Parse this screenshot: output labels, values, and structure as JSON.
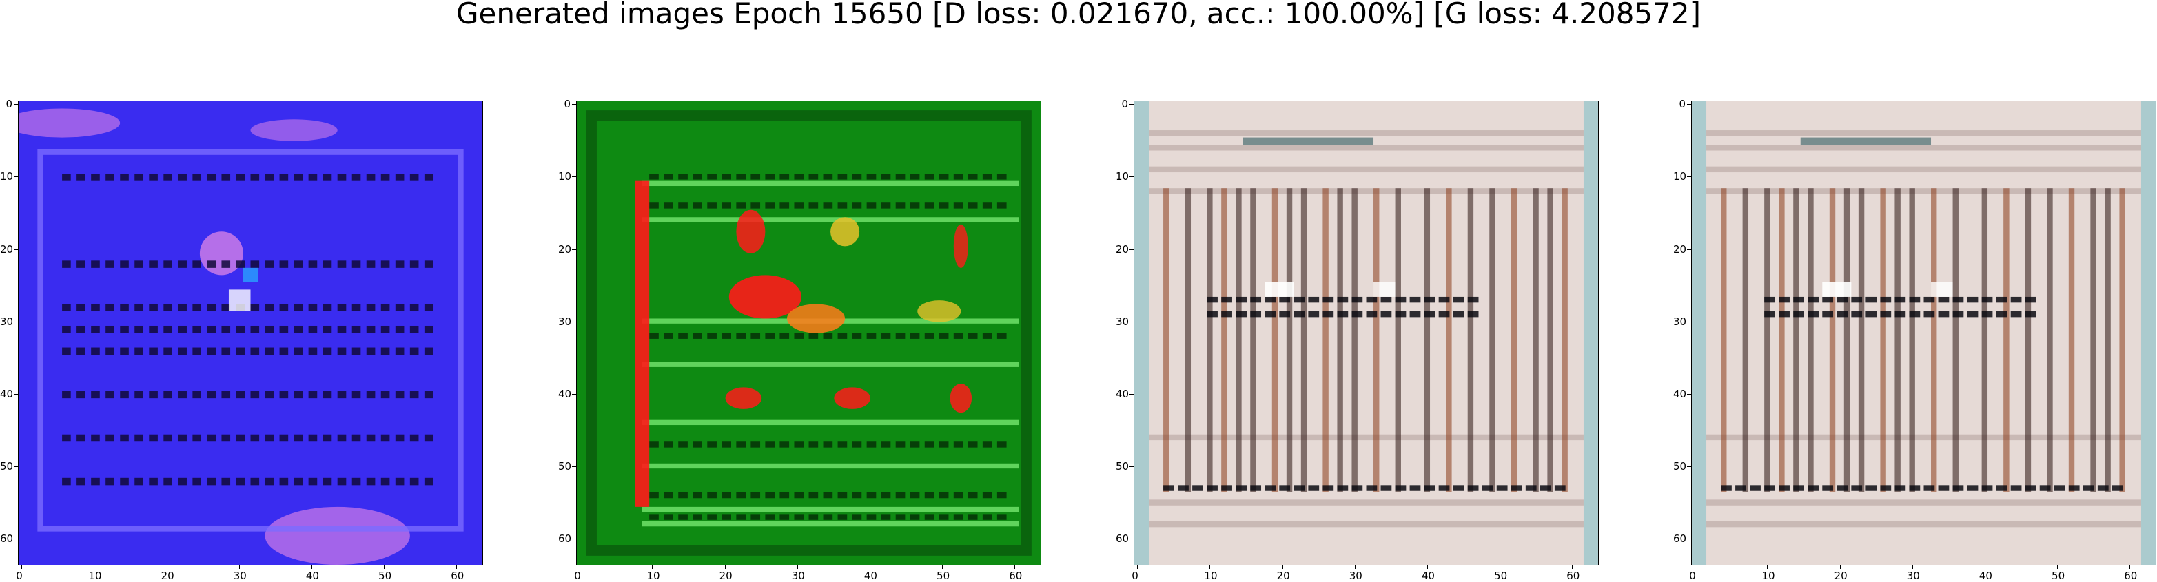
{
  "figure": {
    "title": "Generated images Epoch 15650 [D loss: 0.021670, acc.: 100.00%] [G loss: 4.208572]"
  },
  "panels": [
    {
      "name": "generated-image-1",
      "dominant_colors": {
        "base": "#3a2cf0",
        "accent_light": "#e98be6",
        "stripes": "#120a3a"
      },
      "x_ticks": [
        "0",
        "10",
        "20",
        "30",
        "40",
        "50",
        "60"
      ],
      "y_ticks": [
        "0",
        "10",
        "20",
        "30",
        "40",
        "50",
        "60"
      ]
    },
    {
      "name": "generated-image-2",
      "dominant_colors": {
        "base": "#0e8a12",
        "accent_light": "#6fe06a",
        "highlight": "#ff1a1a",
        "stripes": "#052a06"
      },
      "x_ticks": [
        "0",
        "10",
        "20",
        "30",
        "40",
        "50",
        "60"
      ],
      "y_ticks": [
        "0",
        "10",
        "20",
        "30",
        "40",
        "50",
        "60"
      ]
    },
    {
      "name": "generated-image-3",
      "dominant_colors": {
        "base": "#e6dad6",
        "accent": "#9cc7cc",
        "stripes": "#2a1410",
        "rust": "#8a3c1a"
      },
      "x_ticks": [
        "0",
        "10",
        "20",
        "30",
        "40",
        "50",
        "60"
      ],
      "y_ticks": [
        "0",
        "10",
        "20",
        "30",
        "40",
        "50",
        "60"
      ]
    },
    {
      "name": "generated-image-4",
      "dominant_colors": {
        "base": "#e6dad6",
        "accent": "#9cc7cc",
        "stripes": "#2a1410",
        "rust": "#8a3c1a"
      },
      "x_ticks": [
        "0",
        "10",
        "20",
        "30",
        "40",
        "50",
        "60"
      ],
      "y_ticks": [
        "0",
        "10",
        "20",
        "30",
        "40",
        "50",
        "60"
      ]
    }
  ]
}
